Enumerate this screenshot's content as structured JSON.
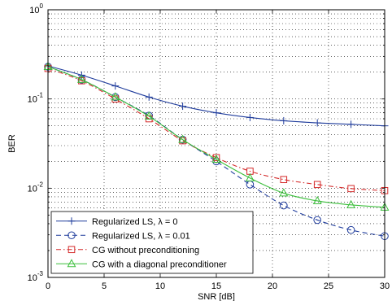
{
  "chart_data": {
    "type": "line",
    "xlabel": "SNR [dB]",
    "ylabel": "BER",
    "xlim": [
      0,
      30
    ],
    "ylim": [
      0.001,
      1
    ],
    "yscale": "log",
    "grid": true,
    "legend_position": "bottom-left",
    "x_ticks": [
      "0",
      "5",
      "10",
      "15",
      "20",
      "25",
      "30"
    ],
    "y_ticks": [
      {
        "base": "10",
        "exp": "0"
      },
      {
        "base": "10",
        "exp": "-1"
      },
      {
        "base": "10",
        "exp": "-2"
      },
      {
        "base": "10",
        "exp": "-3"
      }
    ],
    "series": [
      {
        "name": "Regularized LS, λ = 0",
        "color": "#1f3c9c",
        "marker": "plus",
        "dash": "solid",
        "x": [
          0,
          3,
          6,
          9,
          12,
          15,
          18,
          21,
          24,
          27,
          30
        ],
        "y": [
          0.235,
          0.185,
          0.14,
          0.105,
          0.083,
          0.07,
          0.062,
          0.057,
          0.054,
          0.052,
          0.05
        ]
      },
      {
        "name": "Regularized LS, λ = 0.01",
        "color": "#1f3c9c",
        "marker": "circle",
        "dash": "dashed",
        "x": [
          0,
          3,
          6,
          9,
          12,
          15,
          18,
          21,
          24,
          27,
          30
        ],
        "y": [
          0.23,
          0.165,
          0.105,
          0.065,
          0.035,
          0.02,
          0.011,
          0.0064,
          0.0044,
          0.0034,
          0.0029
        ]
      },
      {
        "name": "CG without preconditioning",
        "color": "#d42a2a",
        "marker": "square",
        "dash": "dashdot",
        "x": [
          0,
          3,
          6,
          9,
          12,
          15,
          18,
          21,
          24,
          27,
          30
        ],
        "y": [
          0.22,
          0.16,
          0.1,
          0.06,
          0.034,
          0.022,
          0.0155,
          0.0125,
          0.011,
          0.0099,
          0.0094
        ]
      },
      {
        "name": "CG with a diagonal preconditioner",
        "color": "#3cbf3c",
        "marker": "triangle",
        "dash": "solid",
        "x": [
          0,
          3,
          6,
          9,
          12,
          15,
          18,
          21,
          24,
          27,
          30
        ],
        "y": [
          0.23,
          0.165,
          0.105,
          0.064,
          0.035,
          0.021,
          0.013,
          0.0088,
          0.0072,
          0.0065,
          0.0061
        ]
      }
    ]
  }
}
